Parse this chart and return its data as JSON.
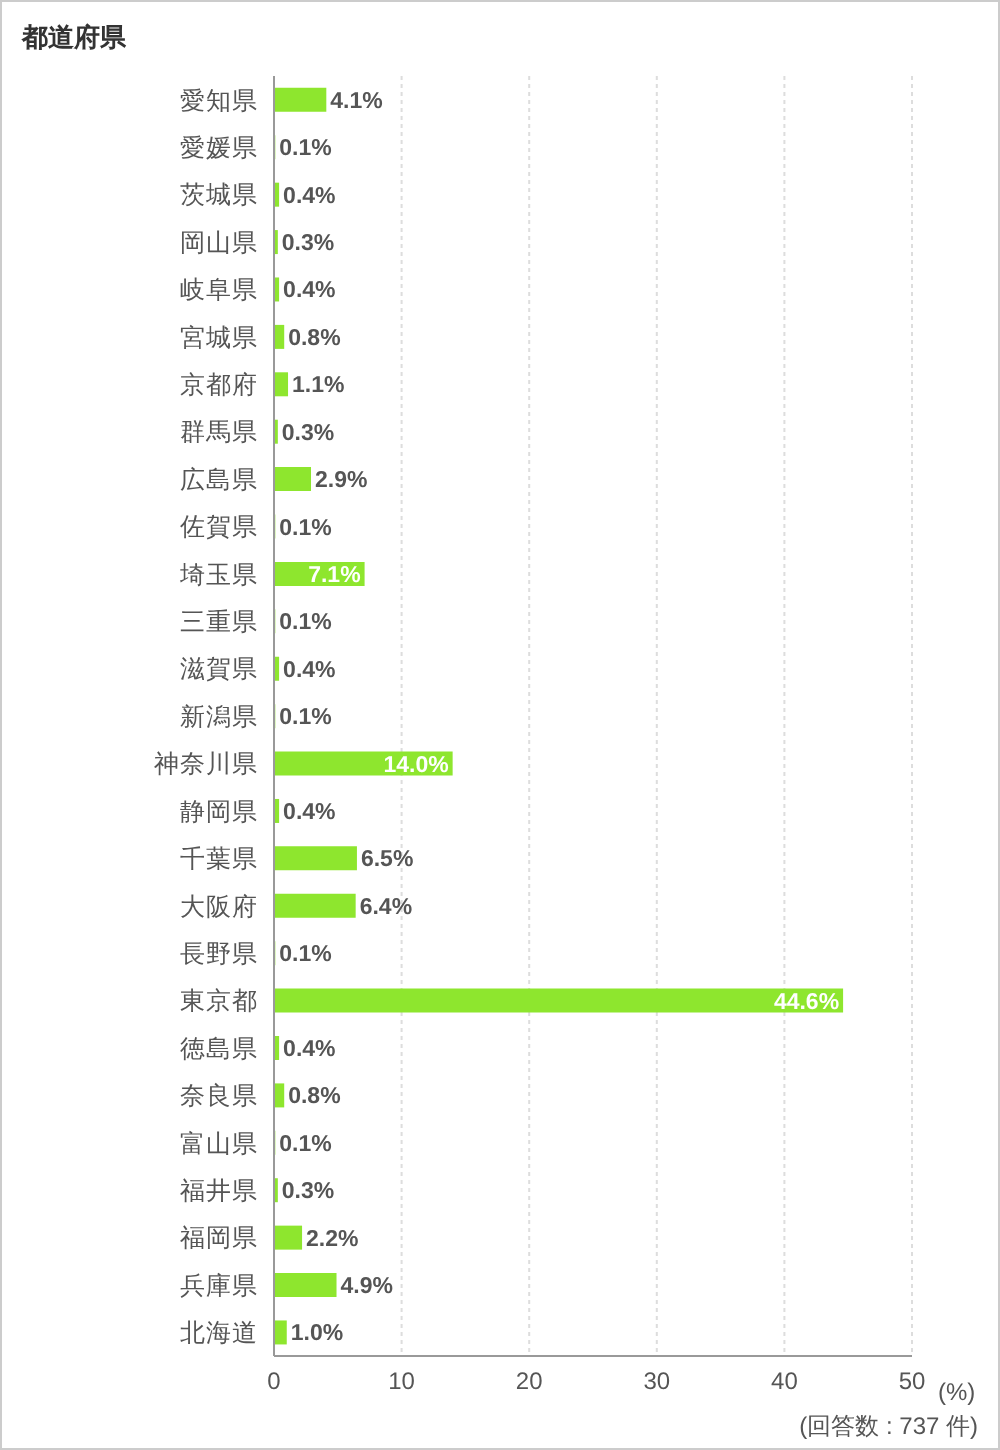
{
  "chart_data": {
    "type": "bar",
    "orientation": "horizontal",
    "title": "都道府県",
    "xlabel": "(%)",
    "annotations": [
      "(回答数 : 737 件)"
    ],
    "categories": [
      "愛知県",
      "愛媛県",
      "茨城県",
      "岡山県",
      "岐阜県",
      "宮城県",
      "京都府",
      "群馬県",
      "広島県",
      "佐賀県",
      "埼玉県",
      "三重県",
      "滋賀県",
      "新潟県",
      "神奈川県",
      "静岡県",
      "千葉県",
      "大阪府",
      "長野県",
      "東京都",
      "徳島県",
      "奈良県",
      "富山県",
      "福井県",
      "福岡県",
      "兵庫県",
      "北海道"
    ],
    "values": [
      4.1,
      0.1,
      0.4,
      0.3,
      0.4,
      0.8,
      1.1,
      0.3,
      2.9,
      0.1,
      7.1,
      0.1,
      0.4,
      0.1,
      14.0,
      0.4,
      6.5,
      6.4,
      0.1,
      44.6,
      0.4,
      0.8,
      0.1,
      0.3,
      2.2,
      4.9,
      1.0
    ],
    "value_labels": [
      "4.1%",
      "0.1%",
      "0.4%",
      "0.3%",
      "0.4%",
      "0.8%",
      "1.1%",
      "0.3%",
      "2.9%",
      "0.1%",
      "7.1%",
      "0.1%",
      "0.4%",
      "0.1%",
      "14.0%",
      "0.4%",
      "6.5%",
      "6.4%",
      "0.1%",
      "44.6%",
      "0.4%",
      "0.8%",
      "0.1%",
      "0.3%",
      "2.2%",
      "4.9%",
      "1.0%"
    ],
    "color": "#8ee62e",
    "xlim": [
      0,
      50
    ],
    "xticks": [
      0,
      10,
      20,
      30,
      40,
      50
    ],
    "grid": "x"
  }
}
